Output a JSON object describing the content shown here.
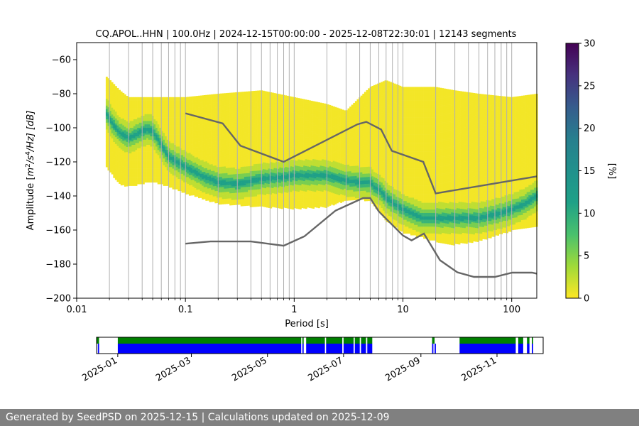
{
  "chart_data": {
    "type": "heatmap",
    "title": "CQ.APOL..HHN | 100.0Hz | 2024-12-15T00:00:00 - 2025-12-08T22:30:01 | 12143 segments",
    "xlabel": "Period [s]",
    "ylabel": "Amplitude [m²/s⁴/Hz] [dB]",
    "ylabel_parts": {
      "pre": "Amplitude [",
      "m": "m",
      "sup2": "2",
      "slash": "/s",
      "sup4": "4",
      "tail": "/Hz] [dB]"
    },
    "x_scale": "log",
    "xlim": [
      0.01,
      170
    ],
    "ylim": [
      -200,
      -50
    ],
    "x_tick_labels": [
      "0.01",
      "0.1",
      "1",
      "10",
      "100"
    ],
    "x_tick_values": [
      0.01,
      0.1,
      1,
      10,
      100
    ],
    "y_tick_labels": [
      "−200",
      "−180",
      "−160",
      "−140",
      "−120",
      "−100",
      "−80",
      "−60"
    ],
    "y_tick_values": [
      -200,
      -180,
      -160,
      -140,
      -120,
      -100,
      -80,
      -60
    ],
    "grid": "vertical",
    "colorbar": {
      "label": "[%]",
      "range": [
        0,
        30
      ],
      "tick_labels": [
        "0",
        "5",
        "10",
        "15",
        "20",
        "25",
        "30"
      ],
      "tick_values": [
        0,
        5,
        10,
        15,
        20,
        25,
        30
      ],
      "colormap": "viridis_r"
    },
    "mode_curve": {
      "x": [
        0.019,
        0.021,
        0.025,
        0.03,
        0.035,
        0.04,
        0.045,
        0.05,
        0.06,
        0.07,
        0.1,
        0.15,
        0.2,
        0.3,
        0.5,
        0.8,
        1.0,
        1.5,
        2.0,
        3.0,
        4.0,
        5.0,
        5.5,
        6.0,
        7.0,
        8.0,
        10,
        15,
        20,
        30,
        50,
        80,
        100,
        130,
        170
      ],
      "y": [
        -92,
        -97,
        -103,
        -106,
        -104,
        -102,
        -101,
        -102,
        -110,
        -117,
        -123,
        -129,
        -132,
        -133,
        -130,
        -129,
        -128,
        -128,
        -128,
        -131,
        -132,
        -132,
        -135,
        -136,
        -141,
        -144,
        -148,
        -153,
        -153,
        -153,
        -153,
        -150,
        -148,
        -145,
        -140
      ]
    },
    "band": {
      "x": [
        0.019,
        0.025,
        0.03,
        0.05,
        0.07,
        0.1,
        0.2,
        0.5,
        1.0,
        2.0,
        3.0,
        5.0,
        7.0,
        10,
        20,
        30,
        50,
        100,
        170
      ],
      "low": [
        -123,
        -133,
        -134,
        -131,
        -134,
        -138,
        -144,
        -146,
        -147,
        -146,
        -142,
        -142,
        -154,
        -161,
        -166,
        -168,
        -166,
        -160,
        -157
      ],
      "high": [
        -70,
        -78,
        -82,
        -82,
        -82,
        -82,
        -80,
        -78,
        -82,
        -86,
        -90,
        -76,
        -72,
        -76,
        -76,
        -78,
        -80,
        -82,
        -80
      ]
    },
    "reference_high": {
      "x": [
        0.1,
        0.22,
        0.32,
        0.8,
        3.8,
        4.6,
        6.3,
        7.9,
        15.4,
        20,
        170
      ],
      "y": [
        -91.5,
        -97.4,
        -110.5,
        -120,
        -98.0,
        -96.5,
        -101,
        -113.5,
        -120,
        -138.5,
        -128.5
      ]
    },
    "reference_low": {
      "x": [
        0.1,
        0.17,
        0.4,
        0.8,
        1.24,
        2.4,
        4.3,
        5.0,
        6.0,
        10,
        12,
        15.6,
        21.9,
        31.6,
        45,
        70,
        101,
        154,
        170
      ],
      "y": [
        -168,
        -166.7,
        -166.7,
        -169.2,
        -163.7,
        -148.6,
        -141.2,
        -141.2,
        -149.1,
        -163.2,
        -166.1,
        -162.1,
        -177.7,
        -184.8,
        -187.5,
        -187.5,
        -185.0,
        -185.0,
        -185.6
      ]
    },
    "timeline": {
      "x_tick_labels": [
        "2025-01",
        "2025-03",
        "2025-05",
        "2025-07",
        "2025-09",
        "2025-11"
      ],
      "x_tick_values": [
        "2025-01-01",
        "2025-03-01",
        "2025-05-01",
        "2025-07-01",
        "2025-09-01",
        "2025-11-01"
      ],
      "xlim": [
        "2024-12-15",
        "2025-12-08"
      ],
      "rows": [
        {
          "color": "#008000",
          "segments": [
            [
              "2024-12-15",
              "2024-12-17"
            ],
            [
              "2025-01-01",
              "2025-05-28"
            ],
            [
              "2025-05-29",
              "2025-05-30"
            ],
            [
              "2025-06-01",
              "2025-06-16"
            ],
            [
              "2025-06-17",
              "2025-06-30"
            ],
            [
              "2025-07-01",
              "2025-07-09"
            ],
            [
              "2025-07-10",
              "2025-07-14"
            ],
            [
              "2025-07-15",
              "2025-07-19"
            ],
            [
              "2025-07-20",
              "2025-07-24"
            ],
            [
              "2025-09-10",
              "2025-09-12"
            ],
            [
              "2025-10-02",
              "2025-11-16"
            ],
            [
              "2025-11-18",
              "2025-11-22"
            ],
            [
              "2025-11-25",
              "2025-11-27"
            ],
            [
              "2025-11-29",
              "2025-11-30"
            ]
          ]
        },
        {
          "color": "#0000ff",
          "segments": [
            [
              "2024-12-16",
              "2024-12-17"
            ],
            [
              "2025-01-01",
              "2025-05-28"
            ],
            [
              "2025-05-29",
              "2025-05-30"
            ],
            [
              "2025-06-01",
              "2025-06-16"
            ],
            [
              "2025-06-17",
              "2025-06-30"
            ],
            [
              "2025-07-01",
              "2025-07-09"
            ],
            [
              "2025-07-10",
              "2025-07-14"
            ],
            [
              "2025-07-15",
              "2025-07-19"
            ],
            [
              "2025-07-20",
              "2025-07-24"
            ],
            [
              "2025-09-10",
              "2025-09-11"
            ],
            [
              "2025-09-12",
              "2025-09-13"
            ],
            [
              "2025-10-02",
              "2025-11-16"
            ],
            [
              "2025-11-18",
              "2025-11-22"
            ],
            [
              "2025-11-25",
              "2025-11-27"
            ],
            [
              "2025-11-29",
              "2025-11-30"
            ]
          ]
        }
      ]
    }
  },
  "footer": {
    "text": "Generated by SeedPSD on 2025-12-15 | Calculations updated on 2025-12-09"
  }
}
